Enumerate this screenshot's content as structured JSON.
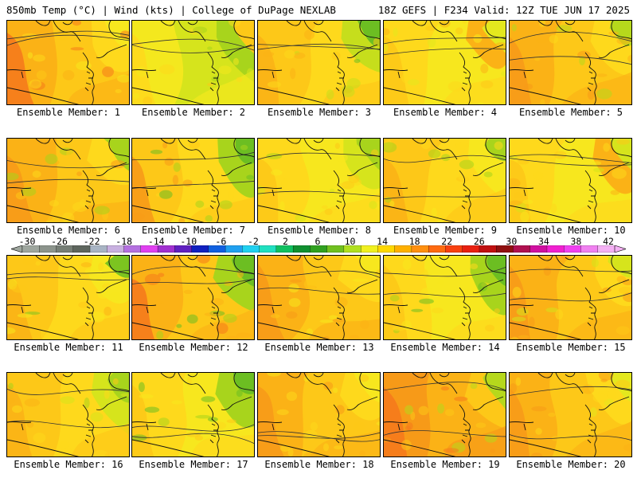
{
  "header": {
    "left": "850mb Temp (°C) | Wind (kts) | College of DuPage NEXLAB",
    "right": "18Z GEFS | F234 Valid: 12Z TUE JUN 17 2025"
  },
  "colorbar": {
    "labels": [
      "-30",
      "-26",
      "-22",
      "-18",
      "-14",
      "-10",
      "-6",
      "-2",
      "2",
      "6",
      "10",
      "14",
      "18",
      "22",
      "26",
      "30",
      "34",
      "38",
      "42"
    ],
    "colors": [
      "#9ea69e",
      "#8c948c",
      "#767e76",
      "#5e665e",
      "#a8b4c4",
      "#c8b0e0",
      "#b470e0",
      "#e040f0",
      "#a030d0",
      "#6020c0",
      "#1020c0",
      "#1060e0",
      "#20a0f0",
      "#20d0f0",
      "#20e0c0",
      "#10c060",
      "#109030",
      "#30a020",
      "#70c020",
      "#b0e020",
      "#f0f020",
      "#ffd800",
      "#ffb000",
      "#ff9010",
      "#ff6a10",
      "#f84010",
      "#e82010",
      "#c01010",
      "#901010",
      "#b01050",
      "#d010a0",
      "#f020d0",
      "#f040f0",
      "#f080f0",
      "#f4b0f4"
    ]
  },
  "members": [
    {
      "label": "Ensemble Member: 1",
      "palette": [
        "#f57a1c",
        "#fbb216",
        "#fdc818",
        "#fed91c",
        "#f7e71e"
      ]
    },
    {
      "label": "Ensemble Member: 2",
      "palette": [
        "#fed91c",
        "#f4e81e",
        "#d6e41c",
        "#a8d41c",
        "#fdc818"
      ]
    },
    {
      "label": "Ensemble Member: 3",
      "palette": [
        "#fbb216",
        "#fdc818",
        "#fed91c",
        "#c6de1c",
        "#6cbe22"
      ]
    },
    {
      "label": "Ensemble Member: 4",
      "palette": [
        "#fdc818",
        "#fed91c",
        "#f7e71e",
        "#fbb216",
        "#e4e81e"
      ]
    },
    {
      "label": "Ensemble Member: 5",
      "palette": [
        "#f79a18",
        "#fbb216",
        "#fdc818",
        "#fed91c",
        "#b6d81c"
      ]
    },
    {
      "label": "Ensemble Member: 6",
      "palette": [
        "#f79a18",
        "#fbb216",
        "#fdc818",
        "#fed91c",
        "#a8d41c"
      ]
    },
    {
      "label": "Ensemble Member: 7",
      "palette": [
        "#f79a18",
        "#fdc818",
        "#fed91c",
        "#a8d41c",
        "#6cbe22"
      ]
    },
    {
      "label": "Ensemble Member: 8",
      "palette": [
        "#fdc818",
        "#fed91c",
        "#f7e71e",
        "#d6e41c",
        "#a8d41c"
      ]
    },
    {
      "label": "Ensemble Member: 9",
      "palette": [
        "#fbb216",
        "#fdc818",
        "#fed91c",
        "#f7e71e",
        "#a8d41c"
      ]
    },
    {
      "label": "Ensemble Member: 10",
      "palette": [
        "#fdc818",
        "#fed91c",
        "#f7e71e",
        "#fbb216",
        "#d6e41c"
      ]
    },
    {
      "label": "Ensemble Member: 11",
      "palette": [
        "#fbb216",
        "#fdc818",
        "#fed91c",
        "#f7e71e",
        "#7cc420"
      ]
    },
    {
      "label": "Ensemble Member: 12",
      "palette": [
        "#f57a1c",
        "#fbb216",
        "#fdc818",
        "#a8d41c",
        "#6cbe22"
      ]
    },
    {
      "label": "Ensemble Member: 13",
      "palette": [
        "#f79a18",
        "#fbb216",
        "#fdc818",
        "#fed91c",
        "#f7e71e"
      ]
    },
    {
      "label": "Ensemble Member: 14",
      "palette": [
        "#fdc818",
        "#fed91c",
        "#f7e71e",
        "#a8d41c",
        "#6cbe22"
      ]
    },
    {
      "label": "Ensemble Member: 15",
      "palette": [
        "#f79a18",
        "#fbb216",
        "#fdc818",
        "#fed91c",
        "#d6e41c"
      ]
    },
    {
      "label": "Ensemble Member: 16",
      "palette": [
        "#fbb216",
        "#fdc818",
        "#fed91c",
        "#d6e41c",
        "#a8d41c"
      ]
    },
    {
      "label": "Ensemble Member: 17",
      "palette": [
        "#fdc818",
        "#fed91c",
        "#f7e71e",
        "#a8d41c",
        "#6cbe22"
      ]
    },
    {
      "label": "Ensemble Member: 18",
      "palette": [
        "#f79a18",
        "#fbb216",
        "#fdc818",
        "#fed91c",
        "#f7e71e"
      ]
    },
    {
      "label": "Ensemble Member: 19",
      "palette": [
        "#f57a1c",
        "#f79a18",
        "#fbb216",
        "#fdc818",
        "#b6d81c"
      ]
    },
    {
      "label": "Ensemble Member: 20",
      "palette": [
        "#f79a18",
        "#fbb216",
        "#fdc818",
        "#fed91c",
        "#e4e81e"
      ]
    }
  ]
}
